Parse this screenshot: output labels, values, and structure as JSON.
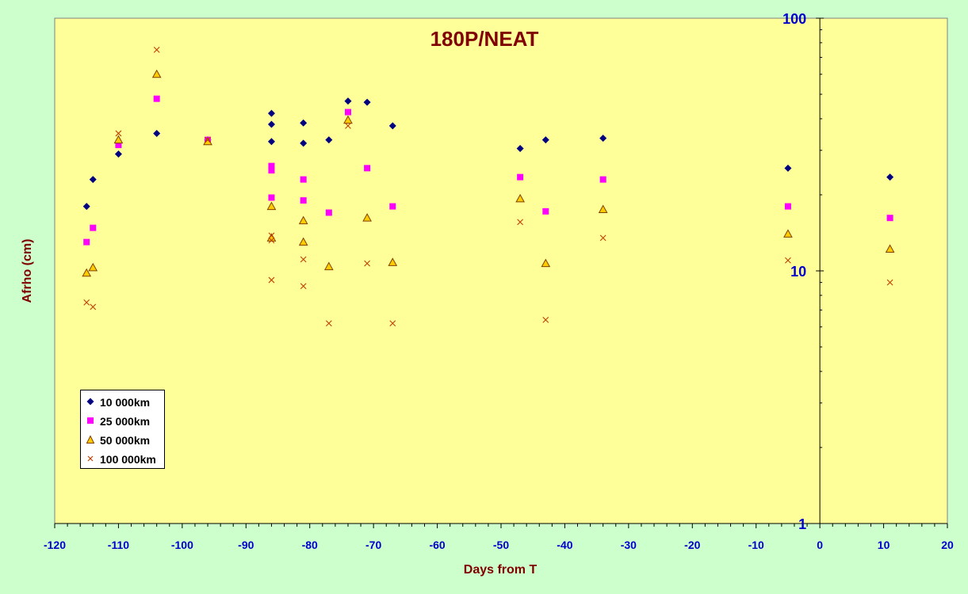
{
  "chart_data": {
    "type": "scatter",
    "title": "180P/NEAT",
    "xlabel": "Days from T",
    "ylabel": "Afrho (cm)",
    "xlim": [
      -120,
      20
    ],
    "x_ticks": [
      -120,
      -110,
      -100,
      -90,
      -80,
      -70,
      -60,
      -50,
      -40,
      -30,
      -20,
      -10,
      0,
      10,
      20
    ],
    "ylim": [
      1,
      100
    ],
    "y_scale": "log",
    "y_ticks": [
      1,
      10,
      100
    ],
    "grid": false,
    "legend_position": "bottom-left",
    "colors": {
      "background": "#ccffcc",
      "plot_area": "#ffff99",
      "title": "#800000",
      "axis_label": "#800000",
      "tick_label": "#0000cc"
    },
    "series": [
      {
        "name": "10 000km",
        "marker": "diamond",
        "color": "#000080",
        "points": [
          [
            -115,
            18.0
          ],
          [
            -114,
            23.0
          ],
          [
            -110,
            29.0
          ],
          [
            -104,
            35.0
          ],
          [
            -96,
            33.0
          ],
          [
            -86,
            42.0
          ],
          [
            -86,
            38.0
          ],
          [
            -86,
            32.5
          ],
          [
            -81,
            38.5
          ],
          [
            -81,
            32.0
          ],
          [
            -77,
            33.0
          ],
          [
            -74,
            47.0
          ],
          [
            -71,
            46.5
          ],
          [
            -67,
            37.5
          ],
          [
            -47,
            30.5
          ],
          [
            -43,
            33.0
          ],
          [
            -34,
            33.5
          ],
          [
            -5,
            25.5
          ],
          [
            11,
            23.5
          ]
        ]
      },
      {
        "name": "25 000km",
        "marker": "square",
        "color": "#ff00ff",
        "points": [
          [
            -115,
            13.0
          ],
          [
            -114,
            14.8
          ],
          [
            -110,
            31.5
          ],
          [
            -104,
            48.0
          ],
          [
            -96,
            33.0
          ],
          [
            -86,
            26.0
          ],
          [
            -86,
            25.0
          ],
          [
            -86,
            19.5
          ],
          [
            -81,
            23.0
          ],
          [
            -81,
            19.0
          ],
          [
            -77,
            17.0
          ],
          [
            -74,
            42.5
          ],
          [
            -71,
            25.5
          ],
          [
            -67,
            18.0
          ],
          [
            -47,
            23.5
          ],
          [
            -43,
            17.2
          ],
          [
            -34,
            23.0
          ],
          [
            -5,
            18.0
          ],
          [
            11,
            16.2
          ]
        ]
      },
      {
        "name": "50 000km",
        "marker": "triangle",
        "color": "#ffcc00",
        "points": [
          [
            -115,
            9.8
          ],
          [
            -114,
            10.3
          ],
          [
            -110,
            33.0
          ],
          [
            -104,
            60.0
          ],
          [
            -96,
            32.5
          ],
          [
            -86,
            18.0
          ],
          [
            -86,
            13.5
          ],
          [
            -81,
            15.8
          ],
          [
            -81,
            13.0
          ],
          [
            -77,
            10.4
          ],
          [
            -74,
            39.5
          ],
          [
            -71,
            16.2
          ],
          [
            -67,
            10.8
          ],
          [
            -47,
            19.3
          ],
          [
            -43,
            10.7
          ],
          [
            -34,
            17.5
          ],
          [
            -5,
            14.0
          ],
          [
            11,
            12.2
          ]
        ]
      },
      {
        "name": "100 000km",
        "marker": "x",
        "color": "#c04000",
        "points": [
          [
            -115,
            7.5
          ],
          [
            -114,
            7.2
          ],
          [
            -110,
            35.0
          ],
          [
            -104,
            75.0
          ],
          [
            -96,
            33.0
          ],
          [
            -86,
            13.8
          ],
          [
            -86,
            13.2
          ],
          [
            -86,
            9.2
          ],
          [
            -81,
            11.1
          ],
          [
            -81,
            8.7
          ],
          [
            -77,
            6.2
          ],
          [
            -74,
            37.5
          ],
          [
            -71,
            10.7
          ],
          [
            -67,
            6.2
          ],
          [
            -47,
            15.6
          ],
          [
            -43,
            6.4
          ],
          [
            -34,
            13.5
          ],
          [
            -5,
            11.0
          ],
          [
            11,
            9.0
          ]
        ]
      }
    ]
  }
}
